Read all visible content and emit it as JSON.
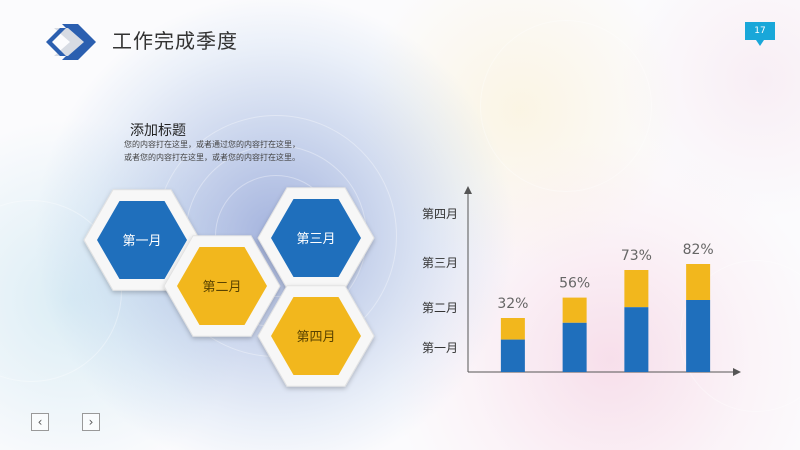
{
  "header": {
    "title": "工作完成季度",
    "page_number": "17"
  },
  "intro": {
    "heading": "添加标题",
    "body": "您的内容打在这里，或者通过您的内容打在这里，或者您的内容打在这里，或者您的内容打在这里。"
  },
  "hexagons": [
    {
      "label": "第一月",
      "color": "#1f6fbc"
    },
    {
      "label": "第二月",
      "color": "#f2b71d"
    },
    {
      "label": "第三月",
      "color": "#1f6fbc"
    },
    {
      "label": "第四月",
      "color": "#f2b71d"
    }
  ],
  "chart_data": {
    "type": "bar",
    "stacked": true,
    "categories": [
      "",
      "",
      "",
      ""
    ],
    "value_labels": [
      "32%",
      "56%",
      "73%",
      "82%"
    ],
    "series": [
      {
        "values": [
          27,
          41,
          54,
          60
        ],
        "color": "#1f6fbc"
      },
      {
        "values": [
          45,
          62,
          85,
          90
        ],
        "color": "#f2b71d"
      }
    ],
    "y_tick_labels": [
      "第一月",
      "第二月",
      "第三月",
      "第四月"
    ],
    "ylim": [
      0,
      150
    ]
  },
  "nav": {
    "prev": "‹",
    "next": "›"
  }
}
